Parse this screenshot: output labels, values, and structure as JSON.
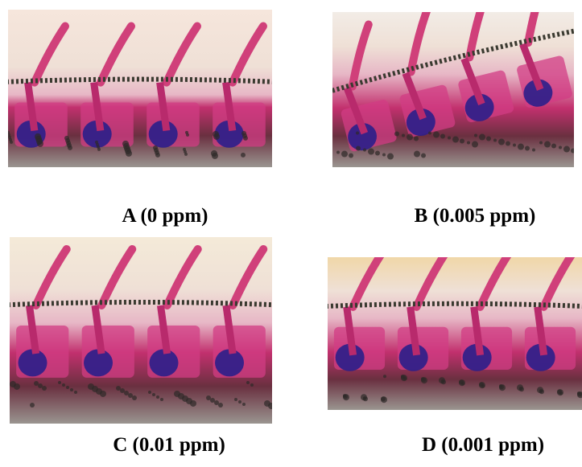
{
  "figure": {
    "panels": [
      {
        "label": "A (0 ppm)"
      },
      {
        "label": "B (0.005 ppm)"
      },
      {
        "label": "C (0.01 ppm)"
      },
      {
        "label": "D (0.001 ppm)"
      }
    ]
  }
}
